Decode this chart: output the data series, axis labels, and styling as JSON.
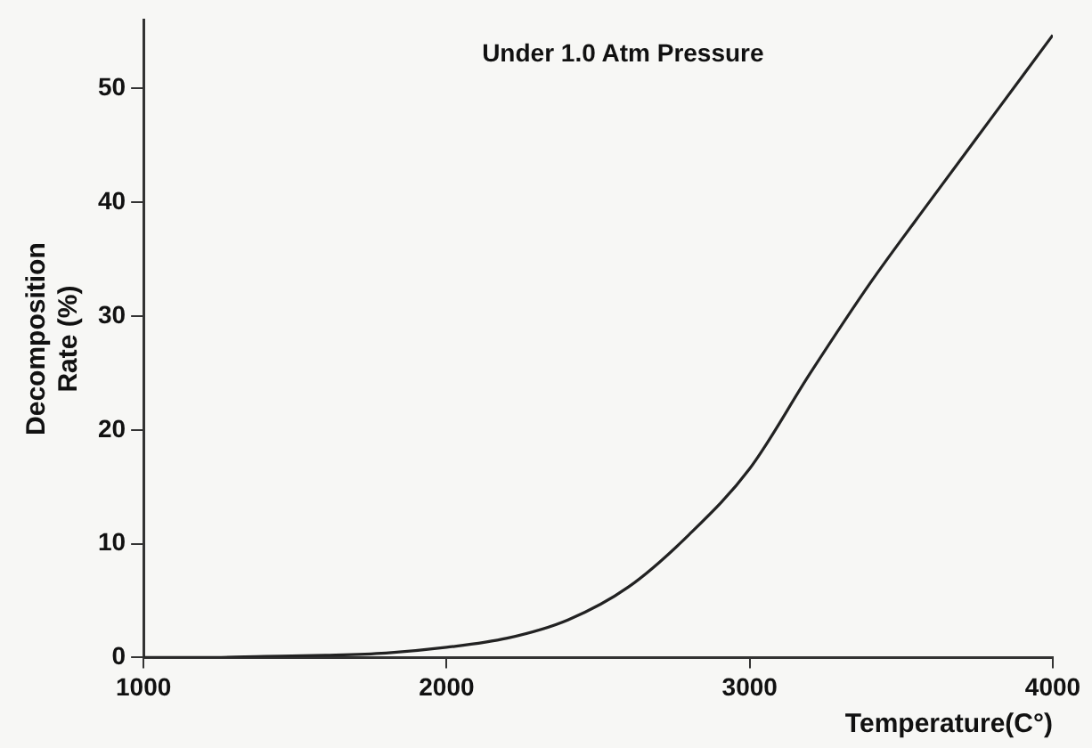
{
  "chart_data": {
    "type": "line",
    "xlabel": "Temperature(C°)",
    "ylabel": "Decomposition Rate (%)",
    "annotations": [
      "Under 1.0 Atm Pressure"
    ],
    "x": [
      1000,
      1200,
      1400,
      1600,
      1800,
      2000,
      2200,
      2400,
      2600,
      2800,
      3000,
      3200,
      3400,
      3600,
      3800,
      4000
    ],
    "series": [
      {
        "color": "#222222",
        "values": [
          0,
          0,
          0.1,
          0.2,
          0.4,
          0.9,
          1.7,
          3.3,
          6.2,
          10.8,
          16.6,
          25,
          33,
          40.3,
          47.5,
          54.7
        ]
      }
    ],
    "xlim": [
      1000,
      4000
    ],
    "xticks": [
      1000,
      2000,
      3000,
      4000
    ],
    "ylim": [
      0,
      56
    ],
    "yticks": [
      0,
      10,
      20,
      30,
      40,
      50
    ],
    "grid": false,
    "legend": false,
    "marker": "none",
    "line_style": "solid"
  }
}
